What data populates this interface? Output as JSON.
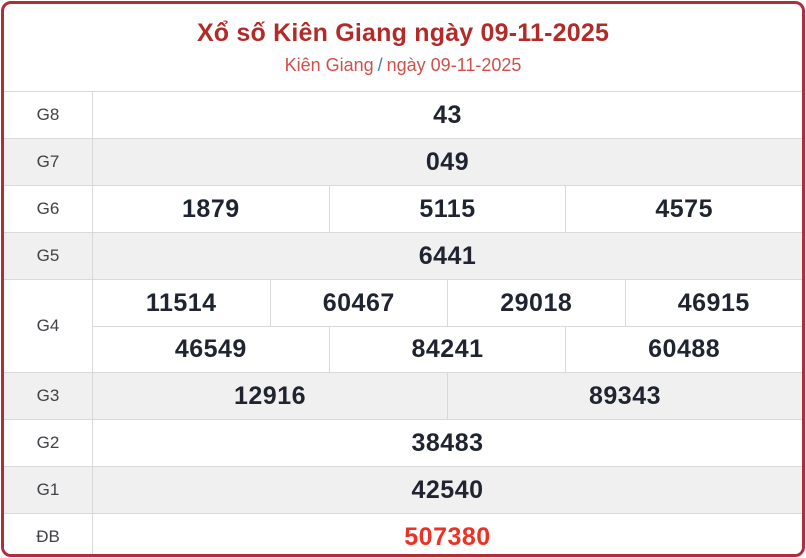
{
  "header": {
    "title": "Xổ số Kiên Giang ngày 09-11-2025",
    "subtitle_region": "Kiên Giang",
    "subtitle_separator": "/",
    "subtitle_date": "ngày 09-11-2025"
  },
  "colors": {
    "card_border": "#b22c39",
    "title_text": "#b12b28",
    "subtitle_text": "#d0504c",
    "separator_text": "#3f7fb5",
    "number_text": "#1f2430",
    "special_number_text": "#ee3124",
    "shaded_row_bg": "#f0f0f0",
    "grid_line": "#d9d9d9"
  },
  "table": {
    "rows": [
      {
        "label": "G8",
        "shade": false,
        "special": false,
        "lines": [
          [
            "43"
          ]
        ]
      },
      {
        "label": "G7",
        "shade": true,
        "special": false,
        "lines": [
          [
            "049"
          ]
        ]
      },
      {
        "label": "G6",
        "shade": false,
        "special": false,
        "lines": [
          [
            "1879",
            "5115",
            "4575"
          ]
        ]
      },
      {
        "label": "G5",
        "shade": true,
        "special": false,
        "lines": [
          [
            "6441"
          ]
        ]
      },
      {
        "label": "G4",
        "shade": false,
        "special": false,
        "lines": [
          [
            "11514",
            "60467",
            "29018",
            "46915"
          ],
          [
            "46549",
            "84241",
            "60488"
          ]
        ]
      },
      {
        "label": "G3",
        "shade": true,
        "special": false,
        "lines": [
          [
            "12916",
            "89343"
          ]
        ]
      },
      {
        "label": "G2",
        "shade": false,
        "special": false,
        "lines": [
          [
            "38483"
          ]
        ]
      },
      {
        "label": "G1",
        "shade": true,
        "special": false,
        "lines": [
          [
            "42540"
          ]
        ]
      },
      {
        "label": "ĐB",
        "shade": false,
        "special": true,
        "lines": [
          [
            "507380"
          ]
        ]
      }
    ]
  }
}
